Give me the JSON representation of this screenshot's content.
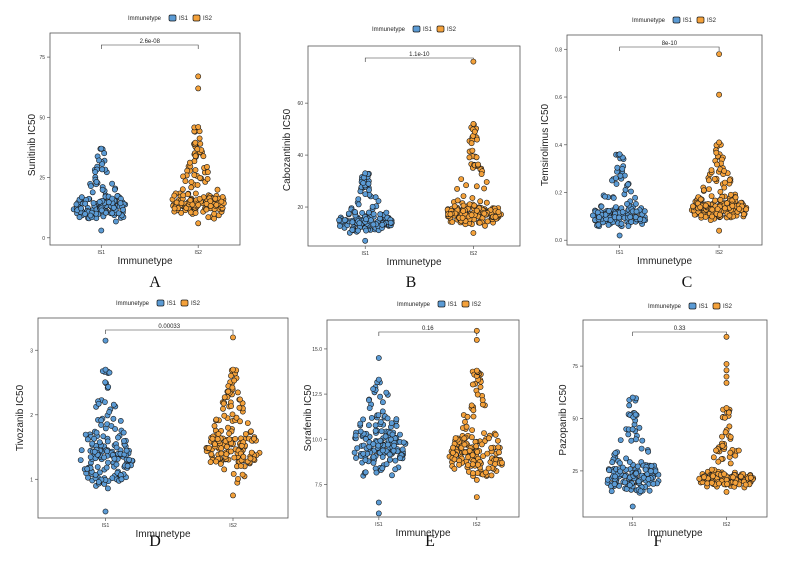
{
  "legend_title": "Immunetype",
  "colors": {
    "IS1": "#5b9bd5",
    "IS2": "#f4a13a",
    "stroke": "#1a1a1a",
    "frame": "#555555"
  },
  "chart_data": [
    {
      "panel": "A",
      "type": "scatter",
      "subtype": "beeswarm",
      "ylabel": "Sunitinib  IC50",
      "xlabel": "Immunetype",
      "categories": [
        "IS1",
        "IS2"
      ],
      "legend": [
        "IS1",
        "IS2"
      ],
      "yticks": [
        0,
        25,
        50,
        75
      ],
      "ylim": [
        -3,
        85
      ],
      "pvalue": "2.6e-08",
      "series": [
        {
          "name": "IS1",
          "median": 12,
          "min": 3,
          "max": 37,
          "n": 150,
          "outliers": []
        },
        {
          "name": "IS2",
          "median": 14,
          "min": 6,
          "max": 46,
          "n": 180,
          "outliers": [
            62,
            67
          ]
        }
      ]
    },
    {
      "panel": "B",
      "type": "scatter",
      "subtype": "beeswarm",
      "ylabel": "Cabozantinib  IC50",
      "xlabel": "Immunetype",
      "categories": [
        "IS1",
        "IS2"
      ],
      "legend": [
        "IS1",
        "IS2"
      ],
      "yticks": [
        20,
        40,
        60
      ],
      "ylim": [
        5,
        82
      ],
      "pvalue": "1.1e-10",
      "series": [
        {
          "name": "IS1",
          "median": 14,
          "min": 7,
          "max": 33,
          "n": 150,
          "outliers": []
        },
        {
          "name": "IS2",
          "median": 17,
          "min": 10,
          "max": 52,
          "n": 180,
          "outliers": [
            76
          ]
        }
      ]
    },
    {
      "panel": "C",
      "type": "scatter",
      "subtype": "beeswarm",
      "ylabel": "Temsirolimus  IC50",
      "xlabel": "Immunetype",
      "categories": [
        "IS1",
        "IS2"
      ],
      "legend": [
        "IS1",
        "IS2"
      ],
      "yticks": [
        0.0,
        0.2,
        0.4,
        0.6,
        0.8
      ],
      "ylim": [
        -0.02,
        0.86
      ],
      "pvalue": "8e-10",
      "series": [
        {
          "name": "IS1",
          "median": 0.1,
          "min": 0.02,
          "max": 0.36,
          "n": 150,
          "outliers": []
        },
        {
          "name": "IS2",
          "median": 0.13,
          "min": 0.04,
          "max": 0.41,
          "n": 180,
          "outliers": [
            0.61,
            0.78
          ]
        }
      ]
    },
    {
      "panel": "D",
      "type": "scatter",
      "subtype": "beeswarm",
      "ylabel": "Tivozanib  IC50",
      "xlabel": "Immunetype",
      "categories": [
        "IS1",
        "IS2"
      ],
      "legend": [
        "IS1",
        "IS2"
      ],
      "yticks": [
        1,
        2,
        3
      ],
      "ylim": [
        0.4,
        3.5
      ],
      "pvalue": "0.00033",
      "series": [
        {
          "name": "IS1",
          "median": 1.3,
          "min": 0.5,
          "max": 2.7,
          "n": 160,
          "outliers": [
            3.15
          ]
        },
        {
          "name": "IS2",
          "median": 1.45,
          "min": 0.75,
          "max": 2.7,
          "n": 170,
          "outliers": [
            3.2
          ]
        }
      ]
    },
    {
      "panel": "E",
      "type": "scatter",
      "subtype": "beeswarm",
      "ylabel": "Sorafenib  IC50",
      "xlabel": "Immunetype",
      "categories": [
        "IS1",
        "IS2"
      ],
      "legend": [
        "IS1",
        "IS2"
      ],
      "yticks": [
        7.5,
        10.0,
        12.5,
        15.0
      ],
      "ylim": [
        5.7,
        16.6
      ],
      "pvalue": "0.16",
      "series": [
        {
          "name": "IS1",
          "median": 9.6,
          "min": 6.5,
          "max": 13.3,
          "n": 160,
          "outliers": [
            5.9,
            14.5
          ]
        },
        {
          "name": "IS2",
          "median": 9.0,
          "min": 6.8,
          "max": 13.8,
          "n": 170,
          "outliers": [
            15.5,
            16.0
          ]
        }
      ]
    },
    {
      "panel": "F",
      "type": "scatter",
      "subtype": "beeswarm",
      "ylabel": "Pazopanib IC50",
      "xlabel": "Immunetype",
      "categories": [
        "IS1",
        "IS2"
      ],
      "legend": [
        "IS1",
        "IS2"
      ],
      "yticks": [
        25,
        50,
        75
      ],
      "ylim": [
        3,
        97
      ],
      "pvalue": "0.33",
      "series": [
        {
          "name": "IS1",
          "median": 22,
          "min": 8,
          "max": 60,
          "n": 160,
          "outliers": []
        },
        {
          "name": "IS2",
          "median": 21,
          "min": 15,
          "max": 55,
          "n": 170,
          "outliers": [
            67,
            70,
            73,
            76,
            89
          ]
        }
      ]
    }
  ]
}
